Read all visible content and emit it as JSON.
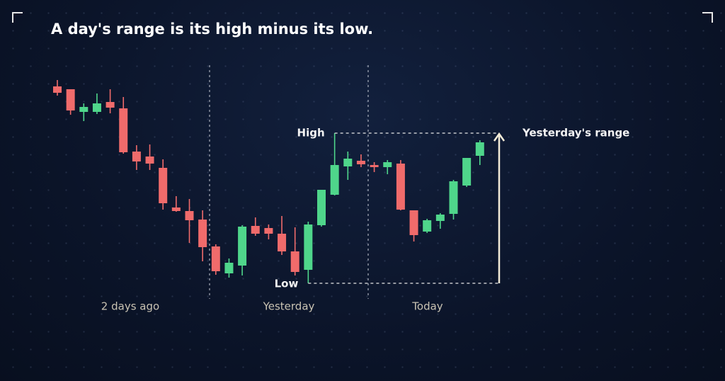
{
  "chart_data": {
    "type": "candlestick",
    "title": "A day's range is its high minus its low.",
    "annotations": {
      "high": "High",
      "low": "Low",
      "range": "Yesterday's range"
    },
    "days": [
      "2 days ago",
      "Yesterday",
      "Today"
    ],
    "up_color": "#4fd68b",
    "down_color": "#f06b6b",
    "ylim": [
      0,
      330
    ],
    "open": [
      298,
      294,
      262,
      262,
      276,
      267,
      206,
      199,
      183,
      127,
      122,
      110,
      72,
      34,
      45,
      101,
      98,
      90,
      65,
      39,
      102,
      145,
      185,
      193,
      187,
      184,
      189,
      123,
      93,
      108,
      118,
      158,
      200
    ],
    "high": [
      307,
      294,
      274,
      288,
      294,
      283,
      215,
      216,
      195,
      143,
      139,
      123,
      75,
      55,
      102,
      113,
      103,
      115,
      99,
      107,
      152,
      232,
      206,
      202,
      191,
      194,
      194,
      123,
      111,
      119,
      166,
      197,
      222
    ],
    "low": [
      285,
      258,
      249,
      259,
      260,
      203,
      180,
      180,
      124,
      121,
      77,
      51,
      32,
      28,
      31,
      87,
      82,
      60,
      31,
      20,
      100,
      144,
      166,
      184,
      177,
      174,
      123,
      79,
      91,
      97,
      110,
      156,
      187
    ],
    "close": [
      289,
      264,
      269,
      274,
      268,
      205,
      192,
      189,
      133,
      122,
      109,
      71,
      37,
      49,
      100,
      90,
      90,
      65,
      36,
      103,
      152,
      187,
      196,
      188,
      184,
      191,
      124,
      88,
      109,
      117,
      164,
      197,
      219
    ]
  }
}
